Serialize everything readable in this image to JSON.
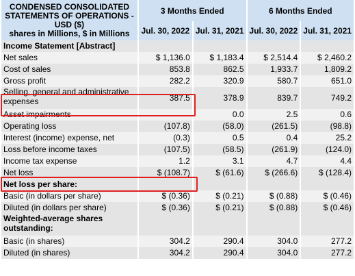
{
  "header": {
    "title_line1": "CONDENSED CONSOLIDATED",
    "title_line2": "STATEMENTS OF OPERATIONS -",
    "title_line3": "USD ($)",
    "title_line4": "shares in Millions, $ in Millions",
    "period_3m": "3 Months Ended",
    "period_6m": "6 Months Ended",
    "dates": [
      "Jul. 30, 2022",
      "Jul. 31, 2021",
      "Jul. 30, 2022",
      "Jul. 31, 2021"
    ]
  },
  "rows": [
    {
      "label": "Income Statement [Abstract]",
      "values": [
        "",
        "",
        "",
        ""
      ]
    },
    {
      "label": "Net sales",
      "values": [
        "$ 1,136.0",
        "$ 1,183.4",
        "$ 2,514.4",
        "$ 2,460.2"
      ]
    },
    {
      "label": "Cost of sales",
      "values": [
        "853.8",
        "862.5",
        "1,933.7",
        "1,809.2"
      ]
    },
    {
      "label": "Gross profit",
      "values": [
        "282.2",
        "320.9",
        "580.7",
        "651.0"
      ]
    },
    {
      "label": "Selling, general and administrative expenses",
      "values": [
        "387.5",
        "378.9",
        "839.7",
        "749.2"
      ]
    },
    {
      "label": "Asset impairments",
      "values": [
        "",
        "0.0",
        "2.5",
        "0.6"
      ]
    },
    {
      "label": "Operating loss",
      "values": [
        "(107.8)",
        "(58.0)",
        "(261.5)",
        "(98.8)"
      ]
    },
    {
      "label": "Interest (income) expense, net",
      "values": [
        "(0.3)",
        "0.5",
        "0.4",
        "25.2"
      ]
    },
    {
      "label": "Loss before income taxes",
      "values": [
        "(107.5)",
        "(58.5)",
        "(261.9)",
        "(124.0)"
      ]
    },
    {
      "label": "Income tax expense",
      "values": [
        "1.2",
        "3.1",
        "4.7",
        "4.4"
      ]
    },
    {
      "label": "Net loss",
      "values": [
        "$ (108.7)",
        "$ (61.6)",
        "$ (266.6)",
        "$ (128.4)"
      ]
    },
    {
      "label": "Net loss per share:",
      "values": [
        "",
        "",
        "",
        ""
      ]
    },
    {
      "label": "Basic (in dollars per share)",
      "values": [
        "$ (0.36)",
        "$ (0.21)",
        "$ (0.88)",
        "$ (0.46)"
      ]
    },
    {
      "label": "Diluted (in dollars per share)",
      "values": [
        "$ (0.36)",
        "$ (0.21)",
        "$ (0.88)",
        "$ (0.46)"
      ]
    },
    {
      "label": "Weighted-average shares outstanding:",
      "values": [
        "",
        "",
        "",
        ""
      ]
    },
    {
      "label": "Basic (in shares)",
      "values": [
        "304.2",
        "290.4",
        "304.0",
        "277.2"
      ]
    },
    {
      "label": "Diluted (in shares)",
      "values": [
        "304.2",
        "290.4",
        "304.0",
        "277.2"
      ]
    }
  ],
  "highlight_color": "#e02020",
  "header_color": "#cfe0f2"
}
